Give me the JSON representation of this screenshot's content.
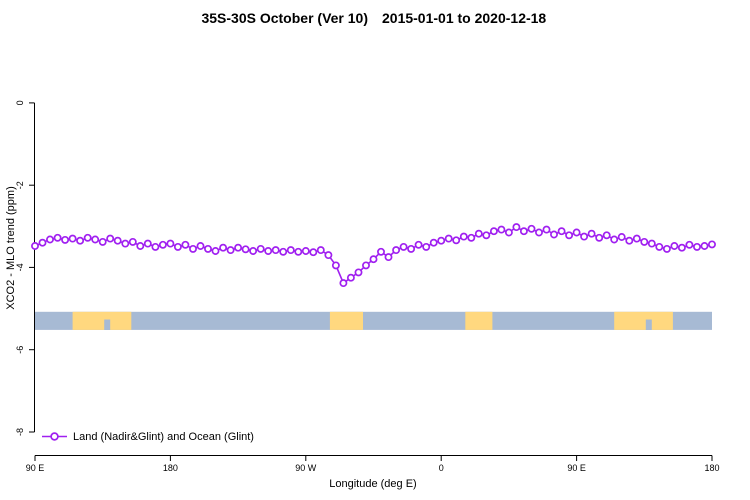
{
  "header": {
    "title_left": "35S-30S October (Ver 10)",
    "title_right": "2015-01-01 to 2020-12-18"
  },
  "legend": {
    "label": "Land (Nadir&Glint) and Ocean (Glint)"
  },
  "chart_data": {
    "type": "line",
    "title": "35S-30S October (Ver 10)   2015-01-01 to 2020-12-18",
    "xlabel": "Longitude (deg E)",
    "ylabel": "XCO2 - MLO trend (ppm)",
    "xlim": [
      90,
      540
    ],
    "ylim": [
      -8.56,
      1.48
    ],
    "grid": false,
    "legend_position": "bottom-left-inside",
    "x_ticks": [
      {
        "value": 90,
        "label": "90 E"
      },
      {
        "value": 180,
        "label": "180"
      },
      {
        "value": 270,
        "label": "90 W"
      },
      {
        "value": 360,
        "label": "0"
      },
      {
        "value": 450,
        "label": "90 E"
      },
      {
        "value": 540,
        "label": "180"
      }
    ],
    "y_ticks": [
      {
        "value": 0,
        "label": "0"
      },
      {
        "value": -2,
        "label": "-2"
      },
      {
        "value": -4,
        "label": "-4"
      },
      {
        "value": -6,
        "label": "-6"
      },
      {
        "value": -8,
        "label": "-8"
      }
    ],
    "land_ocean_band": {
      "y_top": -5.08,
      "y_bottom": -5.52,
      "ocean_color": "#A7BAD4",
      "land_color": "#FFD87F",
      "land_segments": [
        [
          115,
          154
        ],
        [
          286,
          308
        ],
        [
          376,
          394
        ],
        [
          475,
          514
        ]
      ],
      "ocean_notches": [
        [
          136,
          140
        ],
        [
          496,
          500
        ]
      ]
    },
    "series": [
      {
        "name": "Land (Nadir&Glint) and Ocean (Glint)",
        "color": "#A020F0",
        "marker": "open-circle",
        "x": [
          90,
          95,
          100,
          105,
          110,
          115,
          120,
          125,
          130,
          135,
          140,
          145,
          150,
          155,
          160,
          165,
          170,
          175,
          180,
          185,
          190,
          195,
          200,
          205,
          210,
          215,
          220,
          225,
          230,
          235,
          240,
          245,
          250,
          255,
          260,
          265,
          270,
          275,
          280,
          285,
          290,
          295,
          300,
          305,
          310,
          315,
          320,
          325,
          330,
          335,
          340,
          345,
          350,
          355,
          360,
          365,
          370,
          375,
          380,
          385,
          390,
          395,
          400,
          405,
          410,
          415,
          420,
          425,
          430,
          435,
          440,
          445,
          450,
          455,
          460,
          465,
          470,
          475,
          480,
          485,
          490,
          495,
          500,
          505,
          510,
          515,
          520,
          525,
          530,
          535,
          540
        ],
        "values": [
          -3.48,
          -3.4,
          -3.32,
          -3.28,
          -3.33,
          -3.3,
          -3.35,
          -3.28,
          -3.32,
          -3.38,
          -3.3,
          -3.35,
          -3.42,
          -3.38,
          -3.48,
          -3.42,
          -3.5,
          -3.45,
          -3.42,
          -3.5,
          -3.45,
          -3.55,
          -3.48,
          -3.55,
          -3.6,
          -3.52,
          -3.58,
          -3.52,
          -3.56,
          -3.6,
          -3.55,
          -3.6,
          -3.58,
          -3.62,
          -3.58,
          -3.62,
          -3.6,
          -3.63,
          -3.58,
          -3.7,
          -3.95,
          -4.38,
          -4.25,
          -4.12,
          -3.95,
          -3.8,
          -3.62,
          -3.75,
          -3.58,
          -3.5,
          -3.55,
          -3.45,
          -3.5,
          -3.4,
          -3.35,
          -3.3,
          -3.34,
          -3.25,
          -3.28,
          -3.18,
          -3.22,
          -3.12,
          -3.08,
          -3.15,
          -3.02,
          -3.12,
          -3.06,
          -3.15,
          -3.08,
          -3.2,
          -3.12,
          -3.22,
          -3.15,
          -3.25,
          -3.18,
          -3.28,
          -3.22,
          -3.32,
          -3.26,
          -3.35,
          -3.3,
          -3.38,
          -3.42,
          -3.5,
          -3.55,
          -3.48,
          -3.52,
          -3.45,
          -3.5,
          -3.48,
          -3.44
        ]
      }
    ]
  }
}
